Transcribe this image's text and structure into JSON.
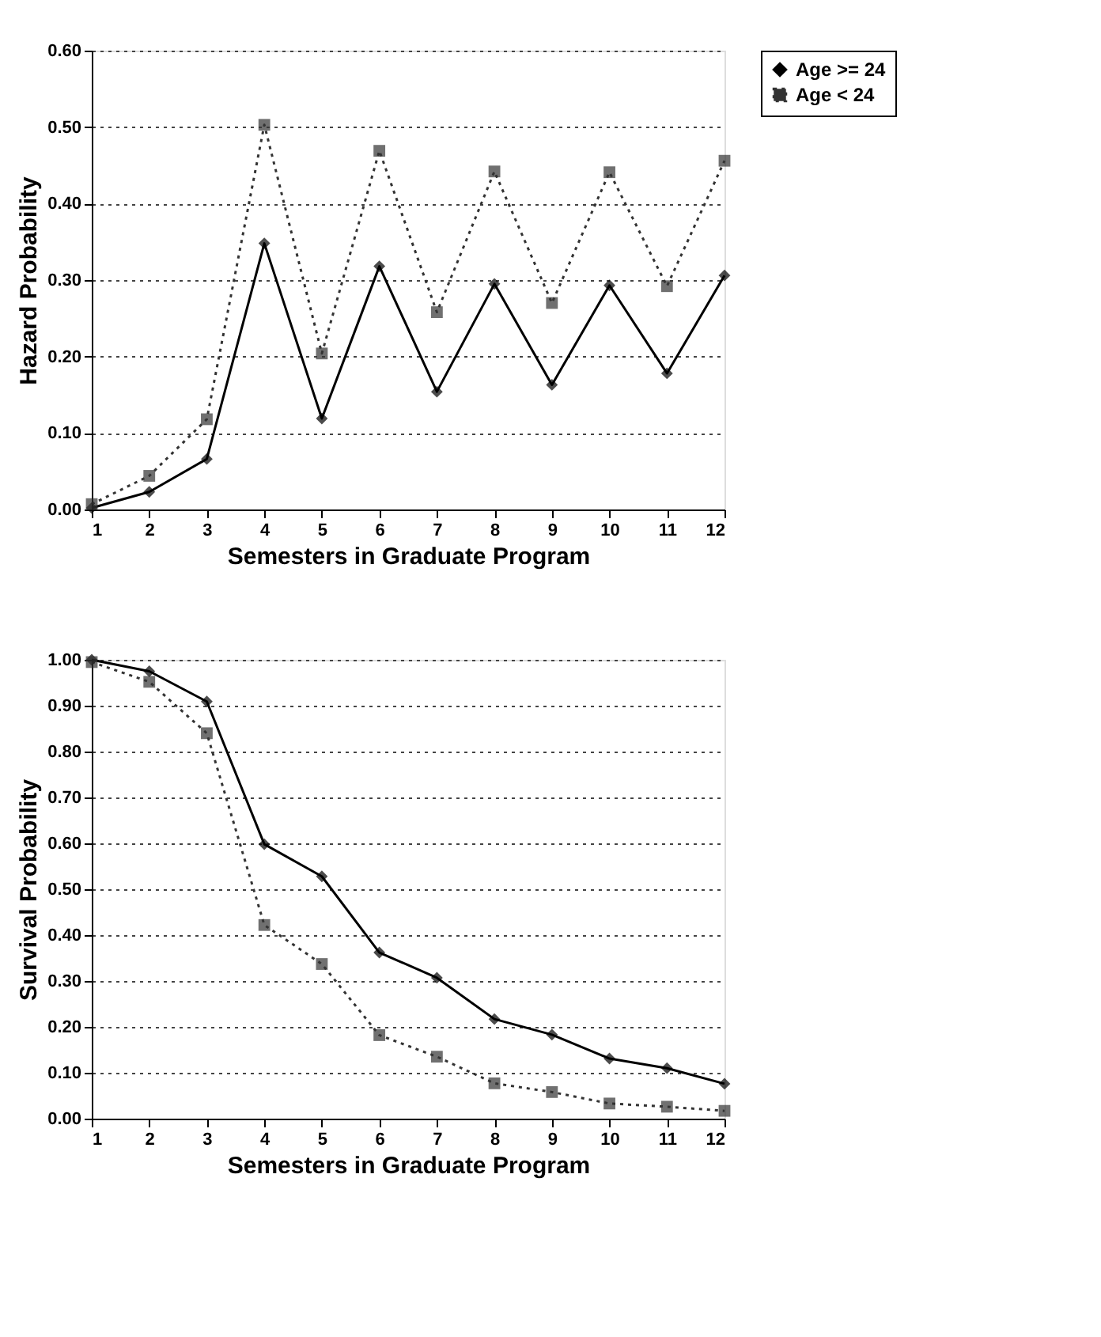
{
  "chart_data": [
    {
      "type": "line",
      "xlabel": "Semesters in Graduate Program",
      "ylabel": "Hazard Probability",
      "x": [
        1,
        2,
        3,
        4,
        5,
        6,
        7,
        8,
        9,
        10,
        11,
        12
      ],
      "xlim": [
        1,
        12
      ],
      "xticks": [
        1,
        2,
        3,
        4,
        5,
        6,
        7,
        8,
        9,
        10,
        11,
        12
      ],
      "ylim": [
        0,
        0.6
      ],
      "yticks": [
        {
          "value": 0,
          "label": "0.00"
        },
        {
          "value": 0.1,
          "label": "0.10"
        },
        {
          "value": 0.2,
          "label": "0.20"
        },
        {
          "value": 0.3,
          "label": "0.30"
        },
        {
          "value": 0.4,
          "label": "0.40"
        },
        {
          "value": 0.5,
          "label": "0.50"
        },
        {
          "value": 0.6,
          "label": "0.60"
        }
      ],
      "grid": "y",
      "legend": "right",
      "series": [
        {
          "name": "Age >= 24",
          "color": "#000000",
          "marker": "diamond",
          "line_style": "solid",
          "values": [
            0.002,
            0.023,
            0.066,
            0.348,
            0.119,
            0.318,
            0.154,
            0.295,
            0.163,
            0.293,
            0.178,
            0.306
          ]
        },
        {
          "name": "Age < 24",
          "color": "#333333",
          "marker": "square",
          "line_style": "dotted",
          "values": [
            0.007,
            0.044,
            0.118,
            0.503,
            0.204,
            0.469,
            0.258,
            0.442,
            0.27,
            0.441,
            0.292,
            0.456
          ]
        }
      ]
    },
    {
      "type": "line",
      "xlabel": "Semesters in Graduate Program",
      "ylabel": "Survival Probability",
      "x": [
        1,
        2,
        3,
        4,
        5,
        6,
        7,
        8,
        9,
        10,
        11,
        12
      ],
      "xlim": [
        1,
        12
      ],
      "xticks": [
        1,
        2,
        3,
        4,
        5,
        6,
        7,
        8,
        9,
        10,
        11,
        12
      ],
      "ylim": [
        0,
        1
      ],
      "yticks": [
        {
          "value": 0,
          "label": "0.00"
        },
        {
          "value": 0.1,
          "label": "0.10"
        },
        {
          "value": 0.2,
          "label": "0.20"
        },
        {
          "value": 0.3,
          "label": "0.30"
        },
        {
          "value": 0.4,
          "label": "0.40"
        },
        {
          "value": 0.5,
          "label": "0.50"
        },
        {
          "value": 0.6,
          "label": "0.60"
        },
        {
          "value": 0.7,
          "label": "0.70"
        },
        {
          "value": 0.8,
          "label": "0.80"
        },
        {
          "value": 0.9,
          "label": "0.90"
        },
        {
          "value": 1,
          "label": "1.00"
        }
      ],
      "grid": "y",
      "legend": "right",
      "series": [
        {
          "name": "Age >= 24",
          "color": "#000000",
          "marker": "diamond",
          "line_style": "solid",
          "values": [
            1.0,
            0.975,
            0.909,
            0.598,
            0.528,
            0.362,
            0.307,
            0.217,
            0.183,
            0.131,
            0.11,
            0.076
          ]
        },
        {
          "name": "Age < 24",
          "color": "#333333",
          "marker": "square",
          "line_style": "dotted",
          "values": [
            0.995,
            0.952,
            0.84,
            0.422,
            0.337,
            0.182,
            0.135,
            0.077,
            0.058,
            0.033,
            0.026,
            0.017
          ]
        }
      ]
    }
  ]
}
